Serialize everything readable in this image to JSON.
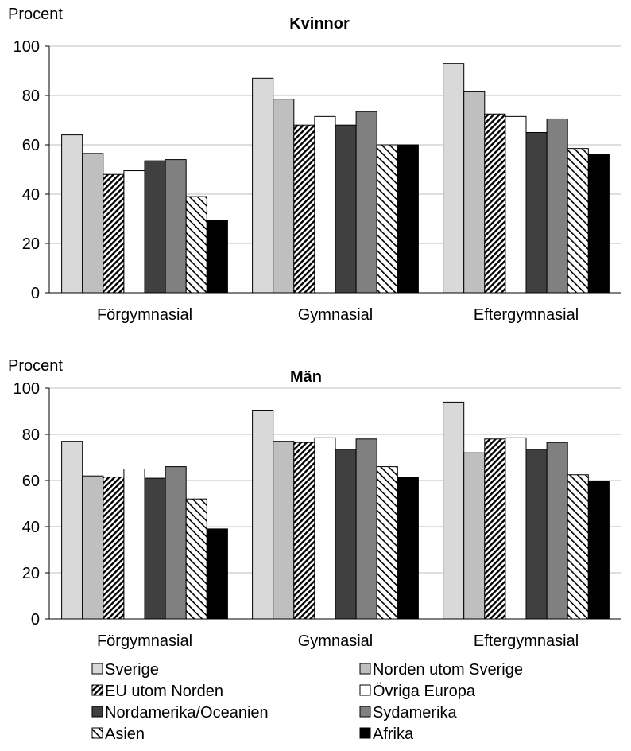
{
  "chart_data": [
    {
      "type": "bar",
      "title": "Kvinnor",
      "ylabel": "Procent",
      "ylim": [
        0,
        100
      ],
      "yticks": [
        0,
        20,
        40,
        60,
        80,
        100
      ],
      "grid": true,
      "categories": [
        "Förgymnasial",
        "Gymnasial",
        "Eftergymnasial"
      ],
      "series": [
        {
          "name": "Sverige",
          "values": [
            64,
            87,
            93
          ]
        },
        {
          "name": "Norden utom Sverige",
          "values": [
            56.5,
            78.5,
            81.5
          ]
        },
        {
          "name": "EU utom Norden",
          "values": [
            48,
            68,
            72.5
          ]
        },
        {
          "name": "Övriga Europa",
          "values": [
            49.5,
            71.5,
            71.5
          ]
        },
        {
          "name": "Nordamerika/Oceanien",
          "values": [
            53.5,
            68,
            65
          ]
        },
        {
          "name": "Sydamerika",
          "values": [
            54,
            73.5,
            70.5
          ]
        },
        {
          "name": "Asien",
          "values": [
            39,
            60,
            58.5
          ]
        },
        {
          "name": "Afrika",
          "values": [
            29.5,
            60,
            56
          ]
        }
      ]
    },
    {
      "type": "bar",
      "title": "Män",
      "ylabel": "Procent",
      "ylim": [
        0,
        100
      ],
      "yticks": [
        0,
        20,
        40,
        60,
        80,
        100
      ],
      "grid": true,
      "categories": [
        "Förgymnasial",
        "Gymnasial",
        "Eftergymnasial"
      ],
      "series": [
        {
          "name": "Sverige",
          "values": [
            77,
            90.5,
            94
          ]
        },
        {
          "name": "Norden utom Sverige",
          "values": [
            62,
            77,
            72
          ]
        },
        {
          "name": "EU utom Norden",
          "values": [
            61.5,
            76.5,
            78
          ]
        },
        {
          "name": "Övriga Europa",
          "values": [
            65,
            78.5,
            78.5
          ]
        },
        {
          "name": "Nordamerika/Oceanien",
          "values": [
            61,
            73.5,
            73.5
          ]
        },
        {
          "name": "Sydamerika",
          "values": [
            66,
            78,
            76.5
          ]
        },
        {
          "name": "Asien",
          "values": [
            52,
            66,
            62.5
          ]
        },
        {
          "name": "Afrika",
          "values": [
            39,
            61.5,
            59.5
          ]
        }
      ]
    }
  ],
  "legend": {
    "placement": "bottom",
    "items": [
      {
        "name": "Sverige",
        "fill": "#d9d9d9",
        "pattern": "solid"
      },
      {
        "name": "Norden utom Sverige",
        "fill": "#bfbfbf",
        "pattern": "solid"
      },
      {
        "name": "EU utom Norden",
        "fill": "#ffffff",
        "pattern": "dense-hatch"
      },
      {
        "name": "Övriga Europa",
        "fill": "#ffffff",
        "pattern": "solid"
      },
      {
        "name": "Nordamerika/Oceanien",
        "fill": "#404040",
        "pattern": "solid"
      },
      {
        "name": "Sydamerika",
        "fill": "#808080",
        "pattern": "solid"
      },
      {
        "name": "Asien",
        "fill": "#ffffff",
        "pattern": "wide-hatch"
      },
      {
        "name": "Afrika",
        "fill": "#000000",
        "pattern": "solid"
      }
    ]
  },
  "colors": {
    "gridline": "#bfbfbf",
    "axis": "#000000",
    "bar_outline": "#000000"
  }
}
